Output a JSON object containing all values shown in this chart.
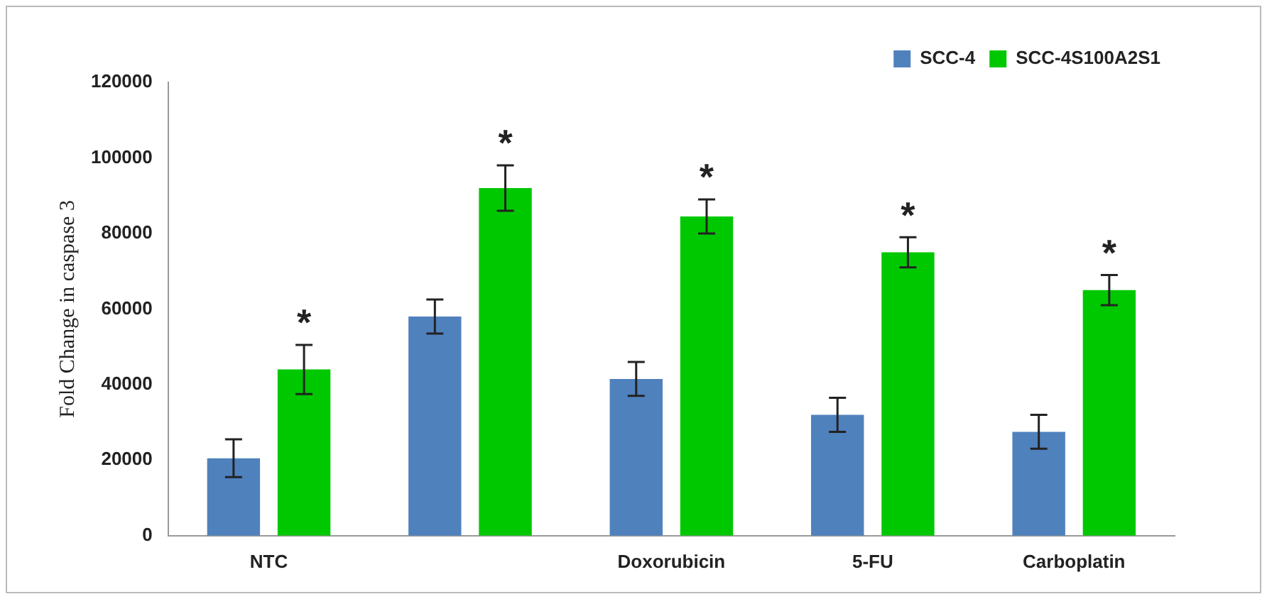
{
  "chart_data": {
    "type": "bar",
    "ylabel": "Fold Change in caspase 3",
    "categories": [
      "NTC",
      null,
      "Doxorubicin",
      "5-FU",
      "Carboplatin"
    ],
    "series": [
      {
        "name": "SCC-4",
        "color": "#4f81bd",
        "values": [
          20500,
          58000,
          41500,
          32000,
          27500
        ],
        "errors": [
          5000,
          4500,
          4500,
          4500,
          4500
        ]
      },
      {
        "name": "SCC-4S100A2S1",
        "color": "#00c800",
        "values": [
          44000,
          92000,
          84500,
          75000,
          65000
        ],
        "errors": [
          6500,
          6000,
          4500,
          4000,
          4000
        ]
      }
    ],
    "ylim": [
      0,
      120000
    ],
    "yticks": [
      0,
      20000,
      40000,
      60000,
      80000,
      100000,
      120000
    ],
    "grid": false,
    "legend": "top right",
    "annotations": [
      "*",
      "*",
      "*",
      "*",
      "*"
    ]
  }
}
